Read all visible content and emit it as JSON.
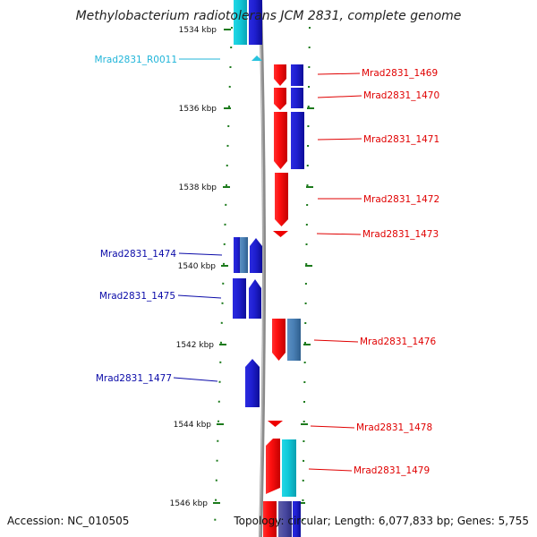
{
  "title": "Methylobacterium radiotolerans JCM 2831, complete genome",
  "footer": {
    "accession": "Accession: NC_010505",
    "summary": "Topology: circular; Length: 6,077,833 bp; Genes: 5,755"
  },
  "scale_ticks": [
    "1534 kbp",
    "1536 kbp",
    "1538 kbp",
    "1540 kbp",
    "1542 kbp",
    "1544 kbp",
    "1546 kbp"
  ],
  "colors": {
    "forward_cds": "#ee0000",
    "reverse_cds": "#1a1acc",
    "rna": "#29c3de",
    "protein": "#4679ab",
    "label_red": "#e00000",
    "label_blue": "#0a0aa8",
    "label_cyan": "#21b5d9",
    "backbone": "#909090",
    "tick": "#1c7a1c"
  },
  "gene_labels": [
    {
      "id": "rna-label-r0011",
      "text": "Mrad2831_R0011",
      "color": "cyan"
    },
    {
      "id": "gene-label-1469",
      "text": "Mrad2831_1469",
      "color": "red"
    },
    {
      "id": "gene-label-1470",
      "text": "Mrad2831_1470",
      "color": "red"
    },
    {
      "id": "gene-label-1471",
      "text": "Mrad2831_1471",
      "color": "red"
    },
    {
      "id": "gene-label-1472",
      "text": "Mrad2831_1472",
      "color": "red"
    },
    {
      "id": "gene-label-1473",
      "text": "Mrad2831_1473",
      "color": "red"
    },
    {
      "id": "gene-label-1474",
      "text": "Mrad2831_1474",
      "color": "blue"
    },
    {
      "id": "gene-label-1475",
      "text": "Mrad2831_1475",
      "color": "blue"
    },
    {
      "id": "gene-label-1476",
      "text": "Mrad2831_1476",
      "color": "red"
    },
    {
      "id": "gene-label-1477",
      "text": "Mrad2831_1477",
      "color": "blue"
    },
    {
      "id": "gene-label-1478",
      "text": "Mrad2831_1478",
      "color": "red"
    },
    {
      "id": "gene-label-1479",
      "text": "Mrad2831_1479",
      "color": "red"
    }
  ]
}
